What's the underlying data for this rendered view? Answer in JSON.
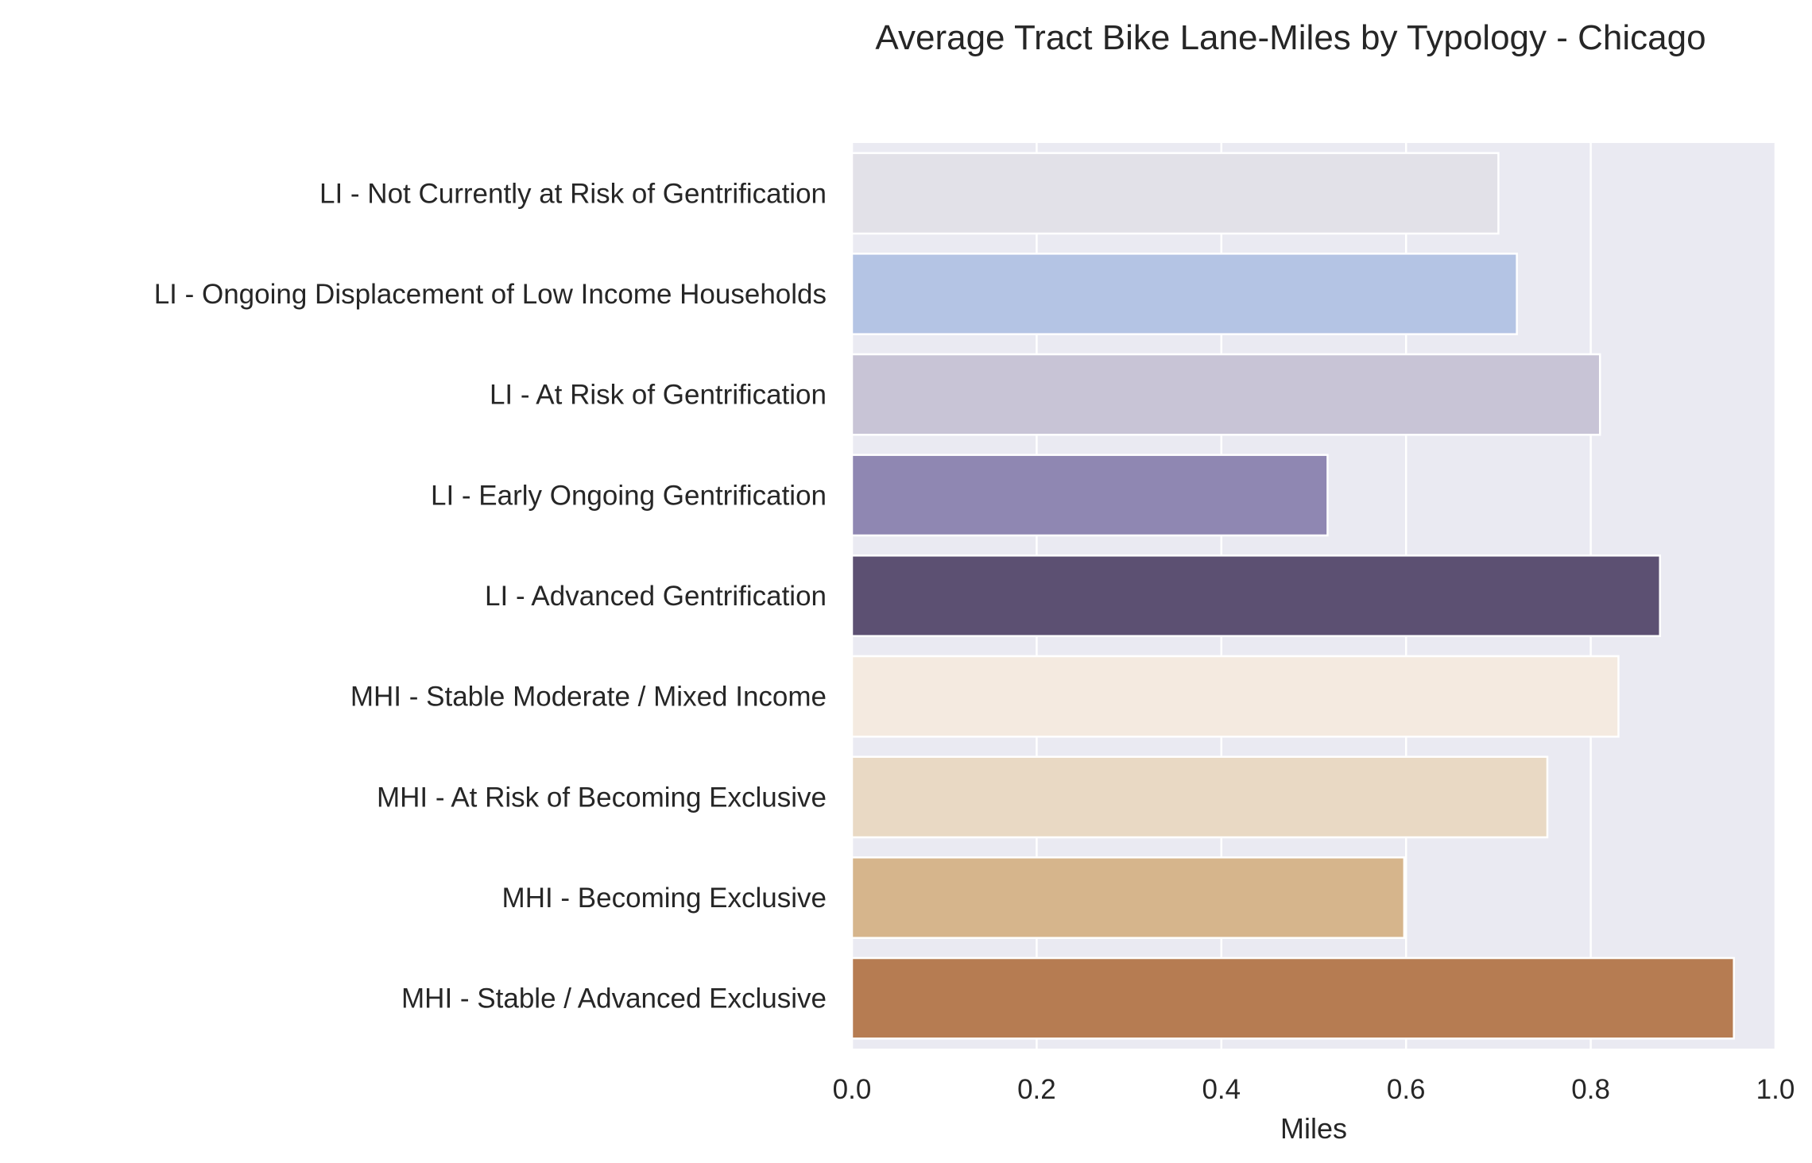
{
  "chart_data": {
    "type": "bar",
    "orientation": "horizontal",
    "title": "Average Tract Bike Lane-Miles by Typology - Chicago",
    "xlabel": "Miles",
    "ylabel": "",
    "xlim": [
      0.0,
      1.0
    ],
    "xticks": [
      "0.0",
      "0.2",
      "0.4",
      "0.6",
      "0.8",
      "1.0"
    ],
    "grid": true,
    "categories": [
      "LI - Not Currently at Risk of Gentrification",
      "LI - Ongoing Displacement of Low Income Households",
      "LI - At Risk of Gentrification",
      "LI - Early Ongoing Gentrification",
      "LI - Advanced Gentrification",
      "MHI - Stable Moderate / Mixed Income",
      "MHI - At Risk of Becoming Exclusive",
      "MHI - Becoming Exclusive",
      "MHI - Stable / Advanced Exclusive"
    ],
    "values": [
      0.7,
      0.72,
      0.81,
      0.515,
      0.875,
      0.83,
      0.753,
      0.598,
      0.955
    ],
    "colors": [
      "#e2e1e8",
      "#b4c4e4",
      "#c8c4d6",
      "#8f87b2",
      "#5c5072",
      "#f4eae0",
      "#e9d9c4",
      "#d6b58c",
      "#b67c52"
    ],
    "background": "#eaeaf2"
  }
}
